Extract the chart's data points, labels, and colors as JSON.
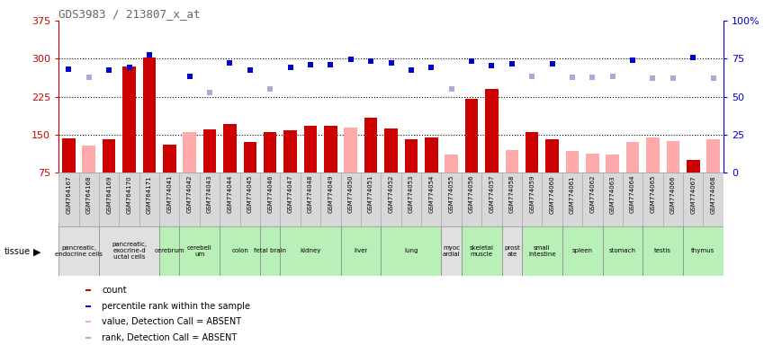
{
  "title": "GDS3983 / 213807_x_at",
  "gsm_labels": [
    "GSM764167",
    "GSM764168",
    "GSM764169",
    "GSM764170",
    "GSM764171",
    "GSM774041",
    "GSM774042",
    "GSM774043",
    "GSM774044",
    "GSM774045",
    "GSM774046",
    "GSM774047",
    "GSM774048",
    "GSM774049",
    "GSM774050",
    "GSM774051",
    "GSM774052",
    "GSM774053",
    "GSM774054",
    "GSM774055",
    "GSM774056",
    "GSM774057",
    "GSM774058",
    "GSM774059",
    "GSM774060",
    "GSM774061",
    "GSM774062",
    "GSM774063",
    "GSM774064",
    "GSM774065",
    "GSM774066",
    "GSM774067",
    "GSM774068"
  ],
  "bar_values": [
    143,
    null,
    140,
    285,
    303,
    130,
    null,
    160,
    170,
    135,
    155,
    158,
    167,
    167,
    null,
    183,
    162,
    140,
    145,
    null,
    220,
    240,
    null,
    155,
    140,
    null,
    null,
    null,
    null,
    null,
    null,
    100,
    null
  ],
  "bar_absent_values": [
    null,
    128,
    null,
    null,
    null,
    null,
    155,
    null,
    null,
    null,
    null,
    null,
    null,
    null,
    163,
    null,
    null,
    null,
    null,
    110,
    null,
    null,
    120,
    null,
    null,
    118,
    112,
    110,
    135,
    145,
    138,
    null,
    140
  ],
  "rank_present": [
    280,
    null,
    278,
    283,
    308,
    null,
    265,
    null,
    292,
    278,
    null,
    282,
    288,
    288,
    298,
    295,
    292,
    278,
    283,
    null,
    296,
    287,
    290,
    null,
    290,
    null,
    null,
    null,
    297,
    null,
    null,
    302,
    null
  ],
  "rank_absent": [
    null,
    263,
    null,
    null,
    null,
    null,
    null,
    233,
    null,
    null,
    240,
    null,
    null,
    null,
    null,
    null,
    null,
    null,
    null,
    240,
    null,
    null,
    null,
    265,
    null,
    263,
    263,
    265,
    null,
    262,
    262,
    null,
    262
  ],
  "tissues": [
    {
      "name": "pancreatic,\nendocrine cells",
      "start": 0,
      "end": 1,
      "color": "#e0e0e0"
    },
    {
      "name": "pancreatic,\nexocrine-d\nuctal cells",
      "start": 2,
      "end": 4,
      "color": "#e0e0e0"
    },
    {
      "name": "cerebrum",
      "start": 5,
      "end": 5,
      "color": "#b8f0b8"
    },
    {
      "name": "cerebell\num",
      "start": 6,
      "end": 7,
      "color": "#b8f0b8"
    },
    {
      "name": "colon",
      "start": 8,
      "end": 9,
      "color": "#b8f0b8"
    },
    {
      "name": "fetal brain",
      "start": 10,
      "end": 10,
      "color": "#b8f0b8"
    },
    {
      "name": "kidney",
      "start": 11,
      "end": 13,
      "color": "#b8f0b8"
    },
    {
      "name": "liver",
      "start": 14,
      "end": 15,
      "color": "#b8f0b8"
    },
    {
      "name": "lung",
      "start": 16,
      "end": 18,
      "color": "#b8f0b8"
    },
    {
      "name": "myoc\nardial",
      "start": 19,
      "end": 19,
      "color": "#e0e0e0"
    },
    {
      "name": "skeletal\nmuscle",
      "start": 20,
      "end": 21,
      "color": "#b8f0b8"
    },
    {
      "name": "prost\nate",
      "start": 22,
      "end": 22,
      "color": "#e0e0e0"
    },
    {
      "name": "small\nintestine",
      "start": 23,
      "end": 24,
      "color": "#b8f0b8"
    },
    {
      "name": "spleen",
      "start": 25,
      "end": 26,
      "color": "#b8f0b8"
    },
    {
      "name": "stomach",
      "start": 27,
      "end": 28,
      "color": "#b8f0b8"
    },
    {
      "name": "testis",
      "start": 29,
      "end": 30,
      "color": "#b8f0b8"
    },
    {
      "name": "thymus",
      "start": 31,
      "end": 32,
      "color": "#b8f0b8"
    }
  ],
  "ylim_left": [
    75,
    375
  ],
  "ylim_right": [
    0,
    100
  ],
  "yticks_left": [
    75,
    150,
    225,
    300,
    375
  ],
  "yticks_right": [
    0,
    25,
    50,
    75,
    100
  ],
  "ytick_labels_left": [
    "75",
    "150",
    "225",
    "300",
    "375"
  ],
  "ytick_labels_right": [
    "0",
    "25",
    "50",
    "75",
    "100%"
  ],
  "bar_color": "#cc0000",
  "bar_absent_color": "#ffaaaa",
  "rank_present_color": "#0000cc",
  "rank_absent_color": "#aaaadd",
  "title_color": "#666666",
  "left_axis_color": "#cc0000",
  "right_axis_color": "#0000cc",
  "gsm_bg_color": "#d8d8d8",
  "gsm_border_color": "#aaaaaa"
}
